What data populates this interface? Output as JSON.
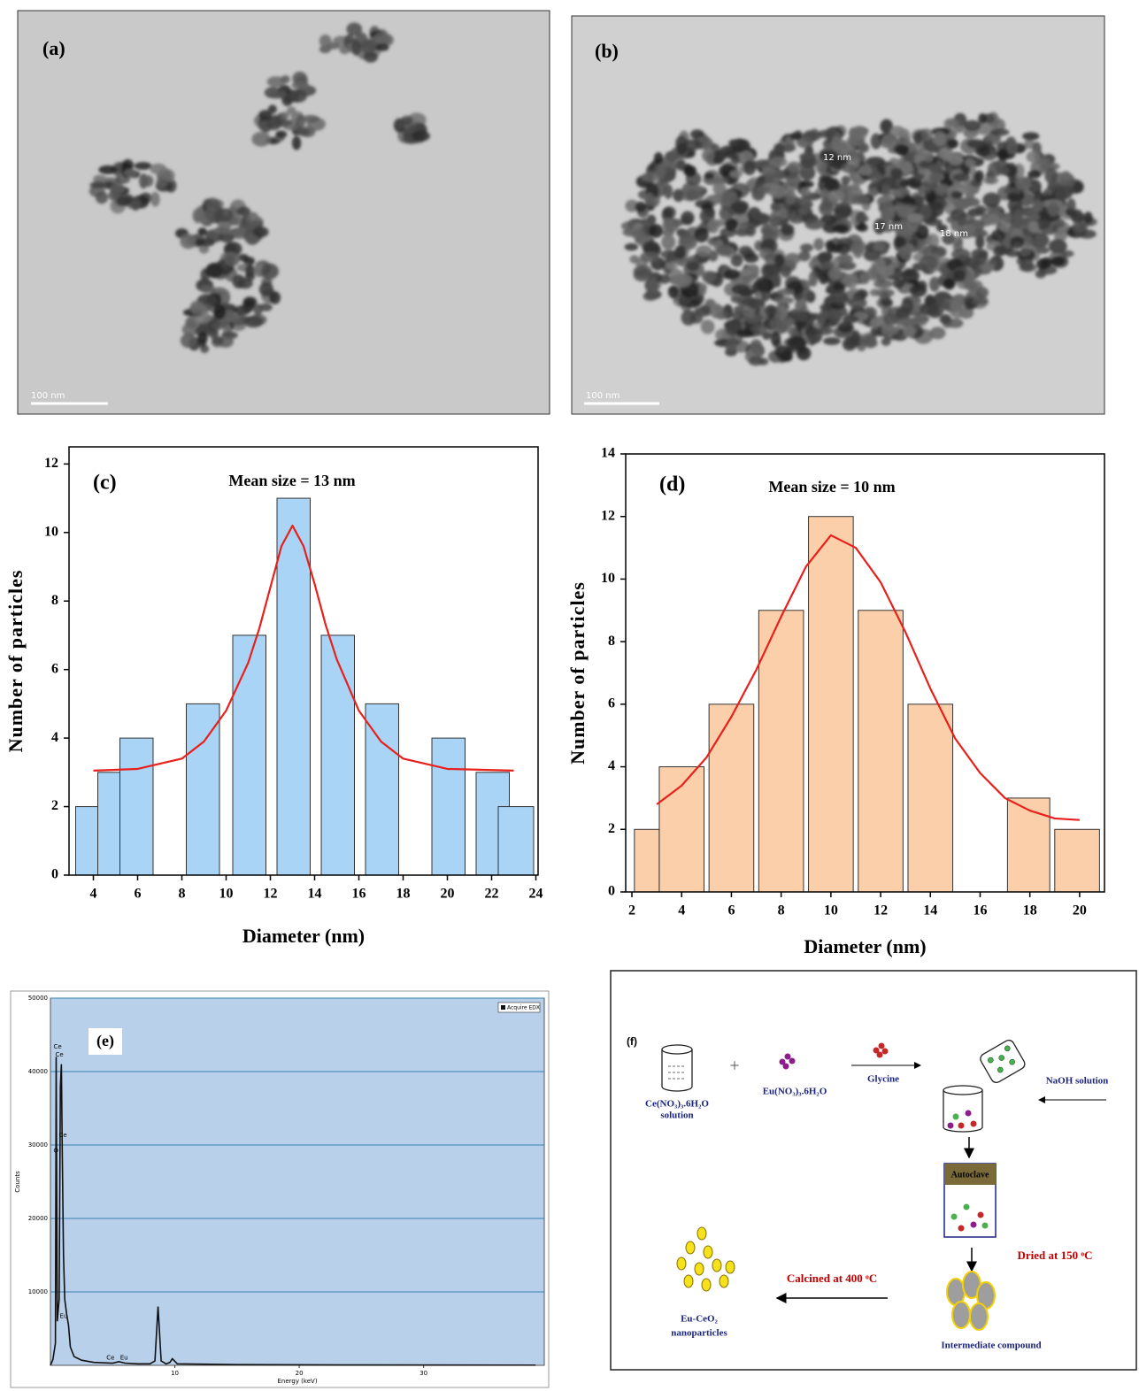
{
  "images": [
    {
      "label": "(a)",
      "scale_bar": "100 nm"
    },
    {
      "label": "(b)",
      "scale_bar": "100 nm",
      "annotations": [
        "12 nm",
        "17 nm",
        "18 nm"
      ]
    }
  ],
  "chart_data": [
    {
      "type": "histogram",
      "panel_label": "(c)",
      "title": "Mean size = 13 nm",
      "xlabel": "Diameter (nm)",
      "ylabel": "Number of particles",
      "color": "#aad4f5",
      "x_left": [
        3.2,
        4.2,
        5.2,
        8.2,
        10.3,
        12.3,
        14.3,
        16.3,
        19.3,
        21.3,
        22.3
      ],
      "x_right": [
        4.2,
        5.2,
        6.7,
        9.7,
        11.8,
        13.8,
        15.8,
        17.8,
        20.8,
        22.8,
        23.9
      ],
      "values": [
        2,
        3,
        4,
        5,
        7,
        11,
        7,
        5,
        4,
        3,
        2
      ],
      "fit": {
        "color": "#e8201c",
        "x": [
          4,
          6,
          8,
          9,
          10,
          11,
          11.5,
          12,
          12.5,
          13,
          13.5,
          14,
          14.5,
          15,
          16,
          17,
          18,
          20,
          23
        ],
        "values": [
          3.05,
          3.1,
          3.4,
          3.9,
          4.8,
          6.2,
          7.2,
          8.4,
          9.6,
          10.2,
          9.6,
          8.5,
          7.3,
          6.3,
          4.8,
          3.9,
          3.4,
          3.1,
          3.05
        ]
      },
      "xlim": [
        2.9,
        24.1
      ],
      "ylim": [
        0,
        12.5
      ],
      "xticks": [
        4,
        6,
        8,
        10,
        12,
        14,
        16,
        18,
        20,
        22,
        24
      ],
      "yticks": [
        0,
        2,
        4,
        6,
        8,
        10,
        12
      ]
    },
    {
      "type": "histogram",
      "panel_label": "(d)",
      "title": "Mean size = 10 nm",
      "xlabel": "Diameter (nm)",
      "ylabel": "Number of particles",
      "color": "#fccfab",
      "x_left": [
        2.1,
        3.1,
        5.1,
        7.1,
        9.1,
        11.1,
        13.1,
        17.1,
        19.0
      ],
      "x_right": [
        3.1,
        4.9,
        6.9,
        8.9,
        10.9,
        12.9,
        14.9,
        18.8,
        20.8
      ],
      "values": [
        2,
        4,
        6,
        9,
        12,
        9,
        6,
        3,
        2
      ],
      "fit": {
        "color": "#e8201c",
        "x": [
          3,
          4,
          5,
          6,
          7,
          8,
          9,
          10,
          11,
          12,
          13,
          14,
          15,
          16,
          17,
          18,
          19,
          20
        ],
        "values": [
          2.8,
          3.4,
          4.3,
          5.6,
          7.1,
          8.8,
          10.4,
          11.4,
          11.0,
          9.9,
          8.3,
          6.5,
          4.9,
          3.8,
          3.0,
          2.6,
          2.35,
          2.3
        ]
      },
      "xlim": [
        1.75,
        21
      ],
      "ylim": [
        0,
        14
      ],
      "xticks": [
        2,
        4,
        6,
        8,
        10,
        12,
        14,
        16,
        18,
        20
      ],
      "yticks": [
        0,
        2,
        4,
        6,
        8,
        10,
        12,
        14
      ]
    },
    {
      "type": "line",
      "panel_label": "(e)",
      "xlabel": "Energy (keV)",
      "ylabel": "Counts",
      "legend": "upper right",
      "grid": true,
      "series": [
        {
          "name": "Acquire EDX",
          "color": "#111111",
          "x": [
            0,
            0.2,
            0.4,
            0.46,
            0.55,
            0.7,
            0.8,
            0.88,
            0.95,
            1.05,
            1.15,
            1.3,
            1.45,
            1.6,
            1.9,
            2.5,
            3.5,
            5,
            5.5,
            6,
            7,
            8,
            8.4,
            8.65,
            8.9,
            9.3,
            9.6,
            9.8,
            10.2,
            15,
            25,
            39
          ],
          "values": [
            0,
            800,
            3000,
            42000,
            6000,
            9000,
            38000,
            41000,
            29000,
            15000,
            9000,
            7000,
            5500,
            2500,
            1200,
            700,
            400,
            300,
            500,
            300,
            200,
            200,
            600,
            8000,
            600,
            200,
            400,
            900,
            200,
            100,
            50,
            30
          ]
        }
      ],
      "annotations": [
        {
          "text": "Ce",
          "x": 0.25,
          "y": 43400
        },
        {
          "text": "Ce",
          "x": 0.39,
          "y": 42300
        },
        {
          "text": "Ce",
          "x": 0.68,
          "y": 31300
        },
        {
          "text": "O",
          "x": 0.25,
          "y": 29200
        },
        {
          "text": "Eu",
          "x": 0.75,
          "y": 6700
        },
        {
          "text": "Ce",
          "x": 4.5,
          "y": 1000
        },
        {
          "text": "Eu",
          "x": 5.6,
          "y": 1000
        }
      ],
      "xlim": [
        0,
        39.7
      ],
      "ylim": [
        0,
        50000
      ],
      "xticks": [
        10,
        20,
        30
      ],
      "yticks": [
        10000,
        20000,
        30000,
        40000,
        50000
      ]
    }
  ],
  "diagram": {
    "label": "(f)",
    "ce_salt": [
      "Ce(NO₃)₃.6H₂O",
      "solution"
    ],
    "plus": "+",
    "eu_salt": "Eu(NO₃)₃.6H₂O",
    "glycine": "Glycine",
    "naoh": "NaOH solution",
    "autoclave": "Autoclave",
    "dried": "Dried at 150 ᵒC",
    "calcined": "Calcined at 400 ᵒC",
    "intermediate": "Intermediate compound",
    "product": [
      "Eu-CeO₂",
      "nanoparticles"
    ]
  }
}
